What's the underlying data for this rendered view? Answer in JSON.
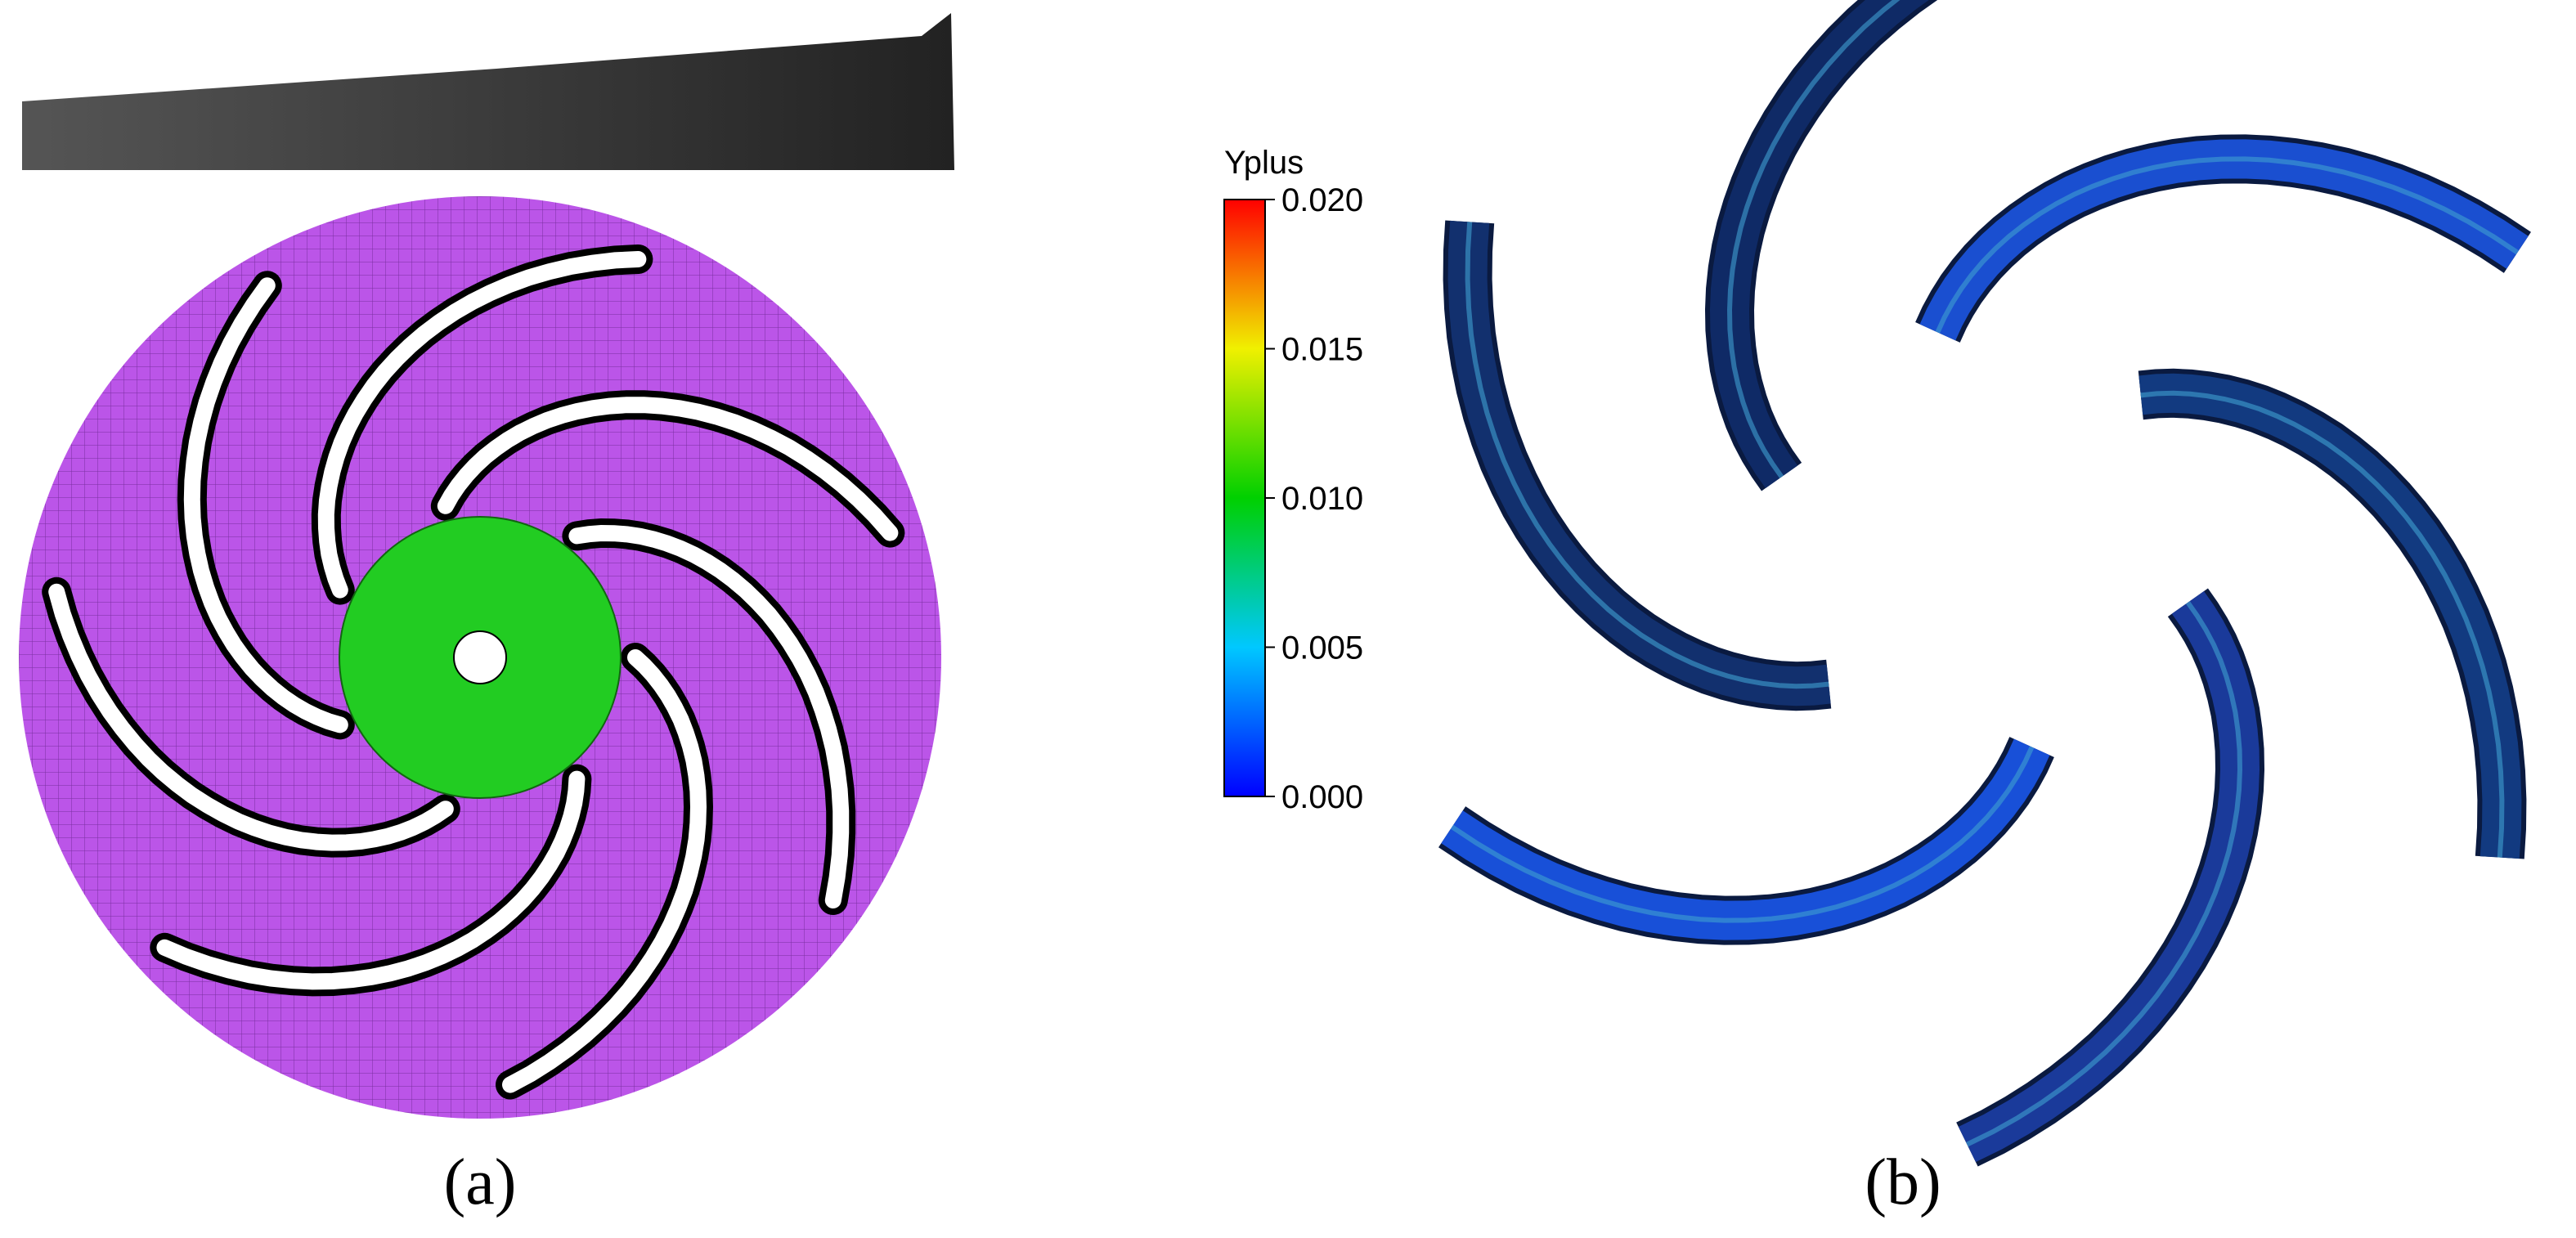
{
  "figure": {
    "panels": [
      {
        "label": "(a)"
      },
      {
        "label": "(b)"
      }
    ],
    "colorbar": {
      "title": "Yplus",
      "lim": [
        0,
        0.02
      ],
      "ticks": [
        {
          "value": 0,
          "label": "0.000"
        },
        {
          "value": 0.005,
          "label": "0.005"
        },
        {
          "value": 0.01,
          "label": "0.010"
        },
        {
          "value": 0.015,
          "label": "0.015"
        },
        {
          "value": 0.02,
          "label": "0.020"
        }
      ]
    }
  }
}
